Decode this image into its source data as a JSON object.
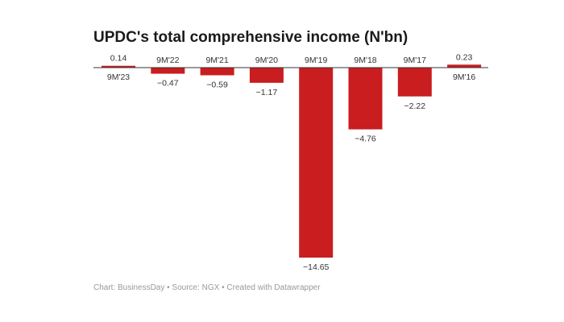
{
  "chart_data": {
    "type": "bar",
    "title": "UPDC's total comprehensive income (N'bn)",
    "categories": [
      "9M'23",
      "9M'22",
      "9M'21",
      "9M'20",
      "9M'19",
      "9M'18",
      "9M'17",
      "9M'16"
    ],
    "values": [
      0.14,
      -0.47,
      -0.59,
      -1.17,
      -14.65,
      -4.76,
      -2.22,
      0.23
    ],
    "value_labels": [
      "0.14",
      "−0.47",
      "−0.59",
      "−1.17",
      "−14.65",
      "−4.76",
      "−2.22",
      "0.23"
    ],
    "xlabel": "",
    "ylabel": "",
    "ylim": [
      -14.65,
      0.5
    ],
    "grid": false,
    "bar_color": "#c91d1f",
    "footer": "Chart: BusinessDay • Source: NGX • Created with Datawrapper"
  }
}
